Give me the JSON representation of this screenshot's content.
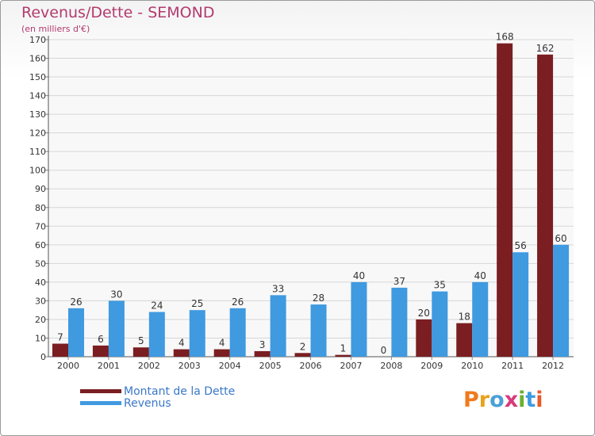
{
  "chart_data": {
    "type": "bar",
    "title": "Revenus/Dette - SEMOND",
    "subtitle": "(en milliers d'€)",
    "categories": [
      "2000",
      "2001",
      "2002",
      "2003",
      "2004",
      "2005",
      "2006",
      "2007",
      "2008",
      "2009",
      "2010",
      "2011",
      "2012"
    ],
    "series": [
      {
        "name": "Montant de la Dette",
        "color": "#7a1e22",
        "values": [
          7,
          6,
          5,
          4,
          4,
          3,
          2,
          1,
          0,
          20,
          18,
          168,
          162
        ]
      },
      {
        "name": "Revenus",
        "color": "#3f9ae0",
        "values": [
          26,
          30,
          24,
          25,
          26,
          33,
          28,
          40,
          37,
          35,
          40,
          56,
          60
        ]
      }
    ],
    "ylim": [
      0,
      170
    ],
    "yticks": [
      0,
      10,
      20,
      30,
      40,
      50,
      60,
      70,
      80,
      90,
      100,
      110,
      120,
      130,
      140,
      150,
      160,
      170
    ],
    "grid": true,
    "legend_position": "bottom-left"
  },
  "logo": {
    "text": "Proxiti"
  }
}
